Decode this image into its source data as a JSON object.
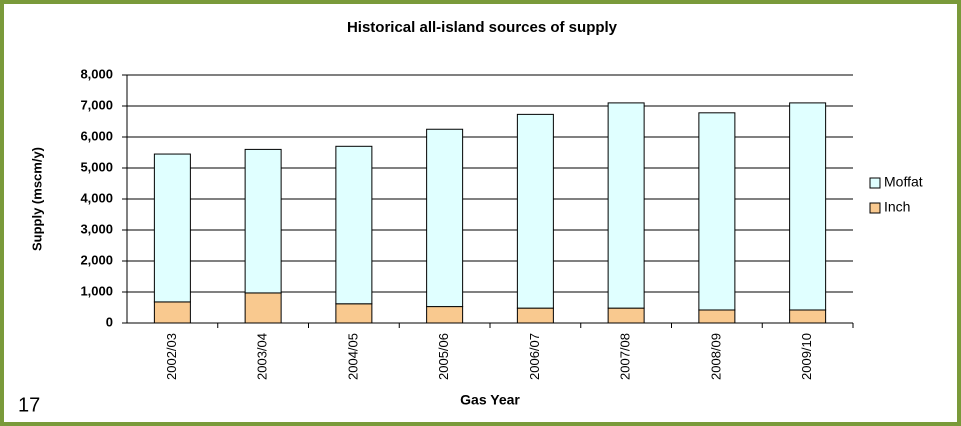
{
  "page_number": "17",
  "chart_data": {
    "type": "stacked-bar",
    "title": "Historical all-island sources of supply",
    "x_label": "Gas Year",
    "y_label": "Supply (mscm/y)",
    "categories": [
      "2002/03",
      "2003/04",
      "2004/05",
      "2005/06",
      "2006/07",
      "2007/08",
      "2008/09",
      "2009/10"
    ],
    "series": [
      {
        "name": "Inch",
        "color": "#f9c98f",
        "values": [
          680,
          970,
          620,
          530,
          480,
          480,
          420,
          420
        ]
      },
      {
        "name": "Moffat",
        "color": "#e0ffff",
        "values": [
          4770,
          4630,
          5080,
          5720,
          6250,
          6620,
          6360,
          6680
        ]
      }
    ],
    "ylim": [
      0,
      8000
    ],
    "yticks": [
      0,
      {
        "value": 1000,
        "label": "1,000"
      },
      {
        "value": 2000,
        "label": "2,000"
      },
      {
        "value": 3000,
        "label": "3,000"
      },
      {
        "value": 4000,
        "label": "4,000"
      },
      {
        "value": 5000,
        "label": "5,000"
      },
      {
        "value": 6000,
        "label": "6,000"
      },
      {
        "value": 7000,
        "label": "7,000"
      },
      {
        "value": 8000,
        "label": "8,000"
      }
    ],
    "grid": true,
    "legend": "right"
  }
}
